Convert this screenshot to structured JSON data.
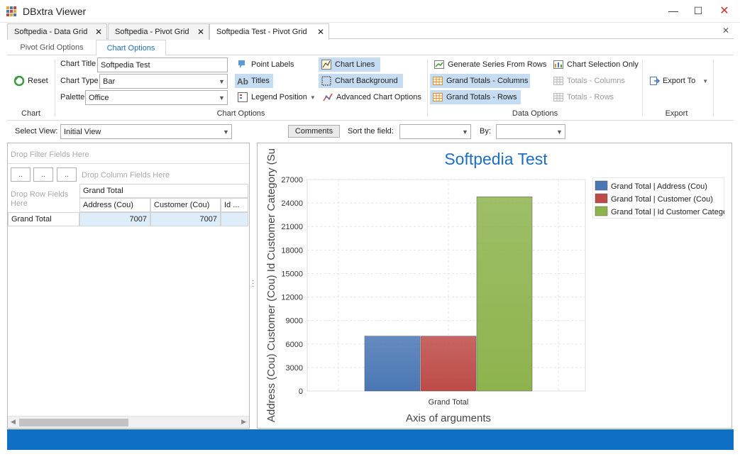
{
  "window": {
    "title": "DBxtra Viewer",
    "minimize": "—",
    "maximize": "☐",
    "close": "✕"
  },
  "doc_tabs": [
    {
      "label": "Softpedia - Data Grid"
    },
    {
      "label": "Softpedia - Pivot Grid"
    },
    {
      "label": "Softpedia Test - Pivot Grid"
    }
  ],
  "doc_tabs_close": "✕",
  "tab_close_glyph": "✕",
  "ribbon_tabs": [
    {
      "label": "Pivot Grid Options"
    },
    {
      "label": "Chart Options"
    }
  ],
  "ribbon": {
    "chart_group": {
      "reset_label": "Reset",
      "caption": "Chart"
    },
    "chart_options_group": {
      "chart_title_label": "Chart Title",
      "chart_title_value": "Softpedia Test",
      "chart_type_label": "Chart Type",
      "chart_type_value": "Bar",
      "palette_label": "Palette",
      "palette_value": "Office",
      "point_labels": "Point Labels",
      "titles": "Titles",
      "legend_position": "Legend Position",
      "chart_lines": "Chart Lines",
      "chart_background": "Chart Background",
      "advanced_chart_options": "Advanced Chart Options",
      "caption": "Chart Options"
    },
    "data_options_group": {
      "generate_series_from_rows": "Generate Series From Rows",
      "grand_totals_columns": "Grand Totals - Columns",
      "grand_totals_rows": "Grand Totals - Rows",
      "chart_selection_only": "Chart Selection Only",
      "totals_columns": "Totals - Columns",
      "totals_rows": "Totals - Rows",
      "caption": "Data Options"
    },
    "export_group": {
      "export_to": "Export To",
      "caption": "Export"
    }
  },
  "toolbar": {
    "select_view_label": "Select View:",
    "select_view_value": "Initial View",
    "comments_label": "Comments",
    "sort_field_label": "Sort the field:",
    "sort_field_value": "",
    "by_label": "By:",
    "by_value": ""
  },
  "pivot": {
    "drop_filter": "Drop Filter Fields Here",
    "drop_column": "Drop Column Fields Here",
    "drop_row": "Drop Row Fields Here",
    "mini_buttons": [
      "..",
      "..",
      ".."
    ],
    "grand_total_header": "Grand Total",
    "column_headers": [
      "Address (Cou)",
      "Customer (Cou)",
      "Id ..."
    ],
    "row_label": "Grand Total",
    "values": [
      "7007",
      "7007",
      ""
    ]
  },
  "chart_data": {
    "type": "bar",
    "title": "Softpedia Test",
    "xlabel": "Axis of arguments",
    "ylabel": "Address (Cou) Customer (Cou) Id Customer Category (Su",
    "categories": [
      "Grand Total"
    ],
    "series": [
      {
        "name": "Grand Total | Address (Cou)",
        "values": [
          7007
        ],
        "color": "#4a77b4"
      },
      {
        "name": "Grand Total | Customer (Cou)",
        "values": [
          7007
        ],
        "color": "#bd4b48"
      },
      {
        "name": "Grand Total | Id Customer Catego",
        "values": [
          24800
        ],
        "color": "#8db34d"
      }
    ],
    "ylim": [
      0,
      27000
    ],
    "yticks": [
      0,
      3000,
      6000,
      9000,
      12000,
      15000,
      18000,
      21000,
      24000,
      27000
    ],
    "grid": true,
    "legend": "top-right"
  },
  "colors": {
    "accent": "#1e6fbf",
    "status_bar": "#0f6fc5",
    "selected": "#c5dcf3",
    "pivot_value_bg": "#ddeefa"
  }
}
